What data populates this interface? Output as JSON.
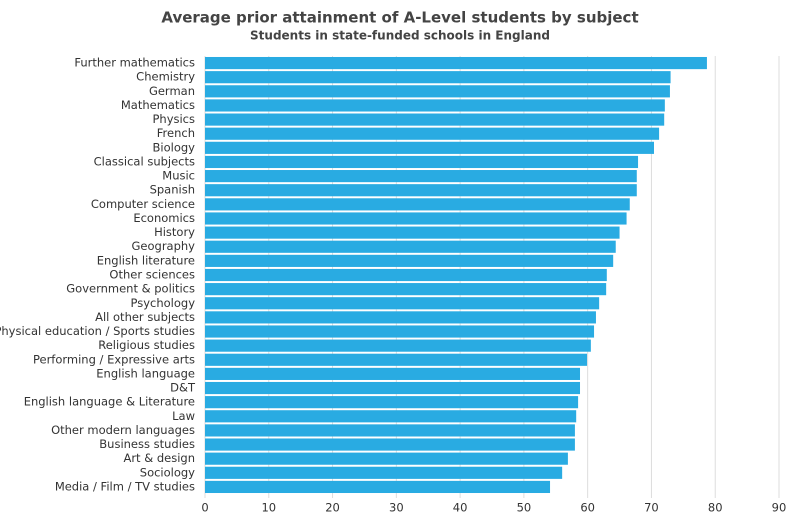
{
  "chart_data": {
    "type": "barh",
    "title": "Average prior attainment of A-Level students by subject",
    "subtitle": "Students in state-funded schools in England",
    "categories": [
      "Further mathematics",
      "Chemistry",
      "German",
      "Mathematics",
      "Physics",
      "French",
      "Biology",
      "Classical subjects",
      "Music",
      "Spanish",
      "Computer science",
      "Economics",
      "History",
      "Geography",
      "English literature",
      "Other sciences",
      "Government & politics",
      "Psychology",
      "All other subjects",
      "Physical education / Sports studies",
      "Religious studies",
      "Performing / Expressive arts",
      "English language",
      "D&T",
      "English language & Literature",
      "Law",
      "Other modern languages",
      "Business studies",
      "Art & design",
      "Sociology",
      "Media / Film / TV studies"
    ],
    "values": [
      78.7,
      73.0,
      72.9,
      72.1,
      72.0,
      71.2,
      70.4,
      67.9,
      67.7,
      67.7,
      66.6,
      66.1,
      65.0,
      64.4,
      64.0,
      63.0,
      62.9,
      61.8,
      61.3,
      61.0,
      60.5,
      59.9,
      58.8,
      58.8,
      58.5,
      58.2,
      58.0,
      58.0,
      56.9,
      56.0,
      54.1
    ],
    "color": "#29abe2",
    "xlim": [
      0,
      90
    ],
    "xticks": [
      0,
      10,
      20,
      30,
      40,
      50,
      60,
      70,
      80,
      90
    ],
    "grid": true
  }
}
